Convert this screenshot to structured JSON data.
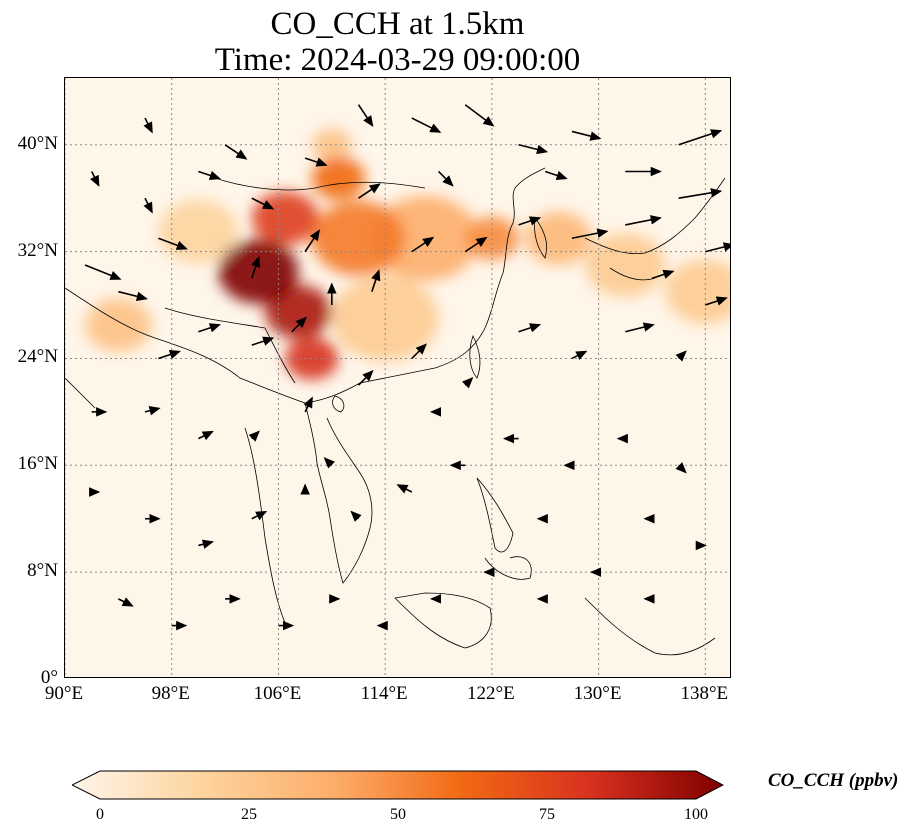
{
  "title": {
    "line1": "CO_CCH at 1.5km",
    "line2": "Time: 2024-03-29 09:00:00"
  },
  "map": {
    "lon_range": [
      90,
      140
    ],
    "lat_range": [
      0,
      45
    ],
    "gridlines": "dotted grey",
    "lat_ticks": [
      {
        "value": 40,
        "label": "40°N"
      },
      {
        "value": 32,
        "label": "32°N"
      },
      {
        "value": 24,
        "label": "24°N"
      },
      {
        "value": 16,
        "label": "16°N"
      },
      {
        "value": 8,
        "label": "8°N"
      },
      {
        "value": 0,
        "label": "0°"
      }
    ],
    "lon_ticks": [
      {
        "value": 90,
        "label": "90°E"
      },
      {
        "value": 98,
        "label": "98°E"
      },
      {
        "value": 106,
        "label": "106°E"
      },
      {
        "value": 114,
        "label": "114°E"
      },
      {
        "value": 122,
        "label": "122°E"
      },
      {
        "value": 130,
        "label": "130°E"
      },
      {
        "value": 138,
        "label": "138°E"
      }
    ],
    "field_name": "CO_CCH",
    "field_unit": "ppbv",
    "concentration_plumes": [
      {
        "lon": 104.5,
        "lat": 30.5,
        "value": 100,
        "spread": 3
      },
      {
        "lon": 107.5,
        "lat": 27.5,
        "value": 90,
        "spread": 2.5
      },
      {
        "lon": 108.5,
        "lat": 24.0,
        "value": 80,
        "spread": 2.0
      },
      {
        "lon": 106.5,
        "lat": 34.5,
        "value": 75,
        "spread": 2.5
      },
      {
        "lon": 110.5,
        "lat": 37.5,
        "value": 60,
        "spread": 2.0
      },
      {
        "lon": 112.0,
        "lat": 33.0,
        "value": 55,
        "spread": 3.5
      },
      {
        "lon": 117.0,
        "lat": 33.0,
        "value": 40,
        "spread": 4.0
      },
      {
        "lon": 122.0,
        "lat": 33.0,
        "value": 50,
        "spread": 2.0
      },
      {
        "lon": 127.0,
        "lat": 33.0,
        "value": 35,
        "spread": 2.5
      },
      {
        "lon": 132.0,
        "lat": 31.0,
        "value": 25,
        "spread": 3.0
      },
      {
        "lon": 138.0,
        "lat": 29.0,
        "value": 25,
        "spread": 3.0
      },
      {
        "lon": 94.0,
        "lat": 26.5,
        "value": 30,
        "spread": 2.5
      },
      {
        "lon": 114.0,
        "lat": 27.0,
        "value": 25,
        "spread": 4.0
      },
      {
        "lon": 100.0,
        "lat": 33.5,
        "value": 20,
        "spread": 3.0
      },
      {
        "lon": 110.0,
        "lat": 40.0,
        "value": 30,
        "spread": 1.5
      }
    ],
    "wind_vectors": [
      {
        "lon": 91.5,
        "lat": 31,
        "u": 5,
        "v": -2
      },
      {
        "lon": 94,
        "lat": 29,
        "u": 4,
        "v": -1
      },
      {
        "lon": 97,
        "lat": 33,
        "u": 4,
        "v": -1.5
      },
      {
        "lon": 100,
        "lat": 38,
        "u": 3,
        "v": -1
      },
      {
        "lon": 102,
        "lat": 40,
        "u": 3,
        "v": -2
      },
      {
        "lon": 104,
        "lat": 36,
        "u": 3,
        "v": -1.5
      },
      {
        "lon": 108,
        "lat": 39,
        "u": 3,
        "v": -1
      },
      {
        "lon": 112,
        "lat": 43,
        "u": 2,
        "v": -3
      },
      {
        "lon": 116,
        "lat": 42,
        "u": 4,
        "v": -2
      },
      {
        "lon": 120,
        "lat": 43,
        "u": 4,
        "v": -3
      },
      {
        "lon": 124,
        "lat": 40,
        "u": 4,
        "v": -1
      },
      {
        "lon": 128,
        "lat": 41,
        "u": 4,
        "v": -1
      },
      {
        "lon": 132,
        "lat": 38,
        "u": 5,
        "v": 0
      },
      {
        "lon": 136,
        "lat": 40,
        "u": 6,
        "v": 2
      },
      {
        "lon": 136,
        "lat": 36,
        "u": 6,
        "v": 1
      },
      {
        "lon": 132,
        "lat": 34,
        "u": 5,
        "v": 1
      },
      {
        "lon": 128,
        "lat": 33,
        "u": 5,
        "v": 1
      },
      {
        "lon": 124,
        "lat": 34,
        "u": 3,
        "v": 1
      },
      {
        "lon": 120,
        "lat": 32,
        "u": 3,
        "v": 2
      },
      {
        "lon": 116,
        "lat": 32,
        "u": 3,
        "v": 2
      },
      {
        "lon": 113,
        "lat": 29,
        "u": 1,
        "v": 3
      },
      {
        "lon": 110,
        "lat": 28,
        "u": 0,
        "v": 3
      },
      {
        "lon": 107,
        "lat": 26,
        "u": 2,
        "v": 2
      },
      {
        "lon": 104,
        "lat": 25,
        "u": 3,
        "v": 1
      },
      {
        "lon": 100,
        "lat": 26,
        "u": 3,
        "v": 1
      },
      {
        "lon": 97,
        "lat": 24,
        "u": 3,
        "v": 1
      },
      {
        "lon": 92,
        "lat": 20,
        "u": 2,
        "v": 0
      },
      {
        "lon": 96,
        "lat": 20,
        "u": 2,
        "v": 0.5
      },
      {
        "lon": 100,
        "lat": 18,
        "u": 2,
        "v": 1
      },
      {
        "lon": 104,
        "lat": 18,
        "u": 1,
        "v": 1
      },
      {
        "lon": 108,
        "lat": 20,
        "u": 1,
        "v": 2
      },
      {
        "lon": 112,
        "lat": 22,
        "u": 2,
        "v": 2
      },
      {
        "lon": 116,
        "lat": 24,
        "u": 2,
        "v": 2
      },
      {
        "lon": 120,
        "lat": 22,
        "u": 1,
        "v": 1
      },
      {
        "lon": 124,
        "lat": 26,
        "u": 3,
        "v": 1
      },
      {
        "lon": 128,
        "lat": 24,
        "u": 2,
        "v": 1
      },
      {
        "lon": 132,
        "lat": 26,
        "u": 4,
        "v": 1
      },
      {
        "lon": 136,
        "lat": 24,
        "u": 1,
        "v": 1
      },
      {
        "lon": 92,
        "lat": 14,
        "u": 1,
        "v": 0
      },
      {
        "lon": 96,
        "lat": 12,
        "u": 2,
        "v": 0
      },
      {
        "lon": 100,
        "lat": 10,
        "u": 2,
        "v": 0.5
      },
      {
        "lon": 104,
        "lat": 12,
        "u": 2,
        "v": 1
      },
      {
        "lon": 108,
        "lat": 14,
        "u": 0,
        "v": 1
      },
      {
        "lon": 112,
        "lat": 12,
        "u": -1,
        "v": 1
      },
      {
        "lon": 116,
        "lat": 14,
        "u": -2,
        "v": 1
      },
      {
        "lon": 120,
        "lat": 16,
        "u": -2,
        "v": 0
      },
      {
        "lon": 124,
        "lat": 18,
        "u": -2,
        "v": 0
      },
      {
        "lon": 128,
        "lat": 16,
        "u": -1,
        "v": 0
      },
      {
        "lon": 132,
        "lat": 18,
        "u": -1,
        "v": 0
      },
      {
        "lon": 136,
        "lat": 16,
        "u": 1,
        "v": -1
      },
      {
        "lon": 94,
        "lat": 6,
        "u": 2,
        "v": -1
      },
      {
        "lon": 98,
        "lat": 4,
        "u": 2,
        "v": 0
      },
      {
        "lon": 102,
        "lat": 6,
        "u": 2,
        "v": 0
      },
      {
        "lon": 106,
        "lat": 4,
        "u": 2,
        "v": 0
      },
      {
        "lon": 110,
        "lat": 6,
        "u": 1,
        "v": 0
      },
      {
        "lon": 114,
        "lat": 4,
        "u": -1,
        "v": 0
      },
      {
        "lon": 118,
        "lat": 6,
        "u": -1,
        "v": 0
      },
      {
        "lon": 122,
        "lat": 8,
        "u": -1,
        "v": 0
      },
      {
        "lon": 126,
        "lat": 6,
        "u": -1,
        "v": 0
      },
      {
        "lon": 130,
        "lat": 8,
        "u": -1,
        "v": 0
      },
      {
        "lon": 134,
        "lat": 6,
        "u": -1,
        "v": 0
      },
      {
        "lon": 138,
        "lat": 10,
        "u": 0,
        "v": 0
      },
      {
        "lon": 96,
        "lat": 36,
        "u": 1,
        "v": -2
      },
      {
        "lon": 92,
        "lat": 38,
        "u": 1,
        "v": -2
      },
      {
        "lon": 96,
        "lat": 42,
        "u": 1,
        "v": -2
      },
      {
        "lon": 104,
        "lat": 30,
        "u": 1,
        "v": 3
      },
      {
        "lon": 108,
        "lat": 32,
        "u": 2,
        "v": 3
      },
      {
        "lon": 112,
        "lat": 36,
        "u": 3,
        "v": 2
      },
      {
        "lon": 118,
        "lat": 38,
        "u": 2,
        "v": -2
      },
      {
        "lon": 126,
        "lat": 38,
        "u": 3,
        "v": -1
      },
      {
        "lon": 138,
        "lat": 32,
        "u": 4,
        "v": 1
      },
      {
        "lon": 134,
        "lat": 30,
        "u": 3,
        "v": 1
      },
      {
        "lon": 138,
        "lat": 28,
        "u": 3,
        "v": 1
      },
      {
        "lon": 110,
        "lat": 16,
        "u": -1,
        "v": 1
      },
      {
        "lon": 118,
        "lat": 20,
        "u": -1,
        "v": 0
      },
      {
        "lon": 126,
        "lat": 12,
        "u": -1,
        "v": 0
      },
      {
        "lon": 134,
        "lat": 12,
        "u": -1,
        "v": 0
      }
    ]
  },
  "colorbar": {
    "label": "CO_CCH (ppbv)",
    "range": [
      0,
      100
    ],
    "ticks": [
      {
        "value": 0,
        "label": "0"
      },
      {
        "value": 25,
        "label": "25"
      },
      {
        "value": 50,
        "label": "50"
      },
      {
        "value": 75,
        "label": "75"
      },
      {
        "value": 100,
        "label": "100"
      }
    ],
    "colors": [
      "#fff5eb",
      "#fdd49e",
      "#fdae6b",
      "#f16913",
      "#d7301f",
      "#7f0000"
    ]
  }
}
